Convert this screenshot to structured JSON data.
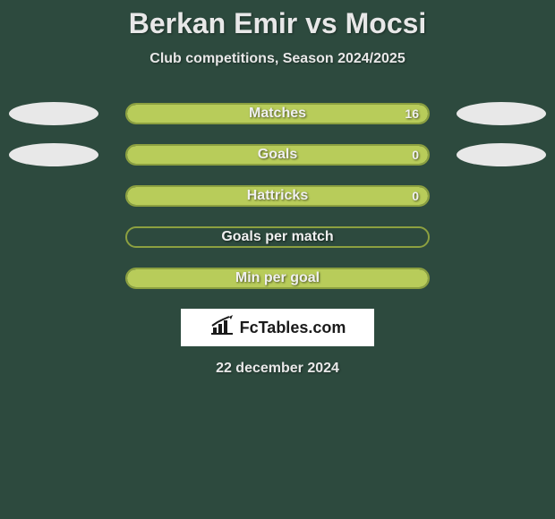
{
  "title": "Berkan Emir vs Mocsi",
  "subtitle": "Club competitions, Season 2024/2025",
  "date": "22 december 2024",
  "logo_text": "FcTables.com",
  "background_color": "#2d4a3e",
  "ellipse_color": "#e8e8e8",
  "colors": {
    "bar_outline": "#8ca040",
    "bar_fill": "#b8cc5a",
    "text": "#e8e8e8"
  },
  "rows": [
    {
      "label": "Matches",
      "value_right": "16",
      "has_left_ellipse": true,
      "has_right_ellipse": true,
      "fill_left_pct": 0,
      "fill_right_pct": 100,
      "outline_only": false
    },
    {
      "label": "Goals",
      "value_right": "0",
      "has_left_ellipse": true,
      "has_right_ellipse": true,
      "fill_left_pct": 0,
      "fill_right_pct": 100,
      "outline_only": false
    },
    {
      "label": "Hattricks",
      "value_right": "0",
      "has_left_ellipse": false,
      "has_right_ellipse": false,
      "fill_left_pct": 0,
      "fill_right_pct": 100,
      "outline_only": false
    },
    {
      "label": "Goals per match",
      "value_right": "",
      "has_left_ellipse": false,
      "has_right_ellipse": false,
      "fill_left_pct": 0,
      "fill_right_pct": 0,
      "outline_only": true
    },
    {
      "label": "Min per goal",
      "value_right": "",
      "has_left_ellipse": false,
      "has_right_ellipse": false,
      "fill_left_pct": 0,
      "fill_right_pct": 100,
      "outline_only": false
    }
  ]
}
